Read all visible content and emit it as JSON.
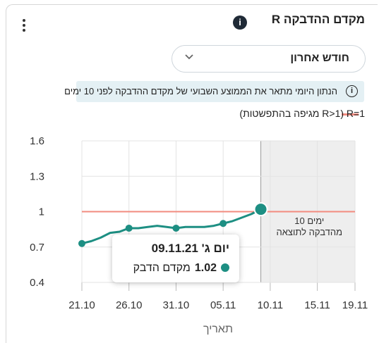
{
  "header": {
    "title": "מקדם ההדבקה R",
    "info_icon": "i"
  },
  "period_select": {
    "selected": "חודש אחרון"
  },
  "note": {
    "icon": "i",
    "text": "הנתון היומי מתאר את הממוצע השבועי של מקדם ההדבקה לפני 10 ימים"
  },
  "legend": {
    "text": "R=1 (R>1 מגיפה בהתפשטות)"
  },
  "tooltip": {
    "date": "יום ג' 09.11.21",
    "value": "1.02",
    "label": "מקדם הדבק"
  },
  "colors": {
    "line": "#1d8f83",
    "reference": "#f28b7f",
    "shade": "#eeeeee",
    "grid": "#e3e3e3"
  },
  "chart_data": {
    "type": "line",
    "x_tick_labels": [
      "21.10",
      "26.10",
      "31.10",
      "05.11",
      "10.11",
      "15.11",
      "19.11"
    ],
    "y_tick_labels": [
      "1.6",
      "1.3",
      "1",
      "0.7",
      "0.4"
    ],
    "y_ticks": [
      1.6,
      1.3,
      1.0,
      0.7,
      0.4
    ],
    "ylim": [
      0.4,
      1.6
    ],
    "xlabel": "תאריך",
    "shade_label_line1": "10 ימים",
    "shade_label_line2": "מהדבקה לתוצאה",
    "reference_line": 1.0,
    "series": [
      {
        "x": [
          "21.10",
          "22.10",
          "23.10",
          "24.10",
          "25.10",
          "26.10",
          "27.10",
          "28.10",
          "29.10",
          "30.10",
          "31.10",
          "01.11",
          "02.11",
          "03.11",
          "04.11",
          "05.11",
          "06.11",
          "07.11",
          "08.11",
          "09.11"
        ],
        "values": [
          0.73,
          0.75,
          0.78,
          0.82,
          0.83,
          0.86,
          0.86,
          0.87,
          0.88,
          0.87,
          0.86,
          0.87,
          0.87,
          0.87,
          0.88,
          0.9,
          0.92,
          0.95,
          0.98,
          1.02
        ],
        "highlight": "09.11"
      }
    ]
  }
}
